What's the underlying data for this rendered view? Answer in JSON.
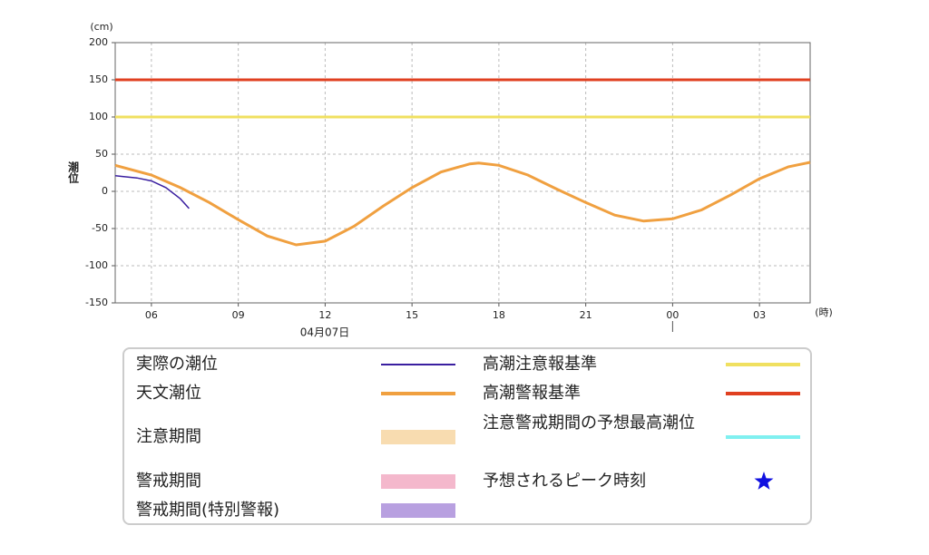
{
  "chart_data": {
    "type": "line",
    "y_unit": "(cm)",
    "x_unit": "(時)",
    "ylabel": "潮位",
    "date_label": "04月07日",
    "xlim": [
      4.75,
      28.75
    ],
    "xticks": [
      {
        "value": 6,
        "label": "06"
      },
      {
        "value": 9,
        "label": "09"
      },
      12,
      15,
      18,
      21,
      {
        "value": 24,
        "label": "00"
      },
      {
        "value": 27,
        "label": "03"
      }
    ],
    "ylim": [
      -150,
      200
    ],
    "yticks": [
      200,
      150,
      100,
      50,
      0,
      -50,
      -100,
      -150
    ],
    "grid": true,
    "series": [
      {
        "name": "実際の潮位",
        "color": "#3a1fa0",
        "x": [
          4.75,
          5,
          5.5,
          6,
          6.5,
          7,
          7.3
        ],
        "values": [
          21,
          20,
          18,
          14,
          5,
          -10,
          -23
        ]
      },
      {
        "name": "天文潮位",
        "color": "#f0a040",
        "x": [
          4.75,
          6,
          7,
          8,
          9,
          10,
          11,
          12,
          13,
          14,
          15,
          16,
          17,
          17.3,
          18,
          19,
          20,
          21,
          22,
          23,
          24,
          25,
          26,
          27,
          28,
          28.75
        ],
        "values": [
          35,
          22,
          5,
          -15,
          -38,
          -60,
          -72,
          -67,
          -47,
          -20,
          5,
          26,
          37,
          38,
          35,
          22,
          3,
          -15,
          -32,
          -40,
          -37,
          -25,
          -5,
          17,
          33,
          39
        ]
      }
    ],
    "reference_lines": [
      {
        "name": "高潮注意報基準",
        "value": 100,
        "color": "#f0e060"
      },
      {
        "name": "高潮警報基準",
        "value": 150,
        "color": "#e04020"
      }
    ],
    "periods": [
      {
        "name": "注意期間",
        "color": "#f8dcb0"
      },
      {
        "name": "警戒期間",
        "color": "#f4b8cc"
      },
      {
        "name": "警戒期間(特別警報)",
        "color": "#b8a0e0"
      }
    ],
    "other_legend": [
      {
        "name": "注意警戒期間の予想最高潮位",
        "color": "#80f0f0",
        "marker": "line"
      },
      {
        "name": "予想されるピーク時刻",
        "color": "#1010e0",
        "marker": "star"
      }
    ]
  }
}
